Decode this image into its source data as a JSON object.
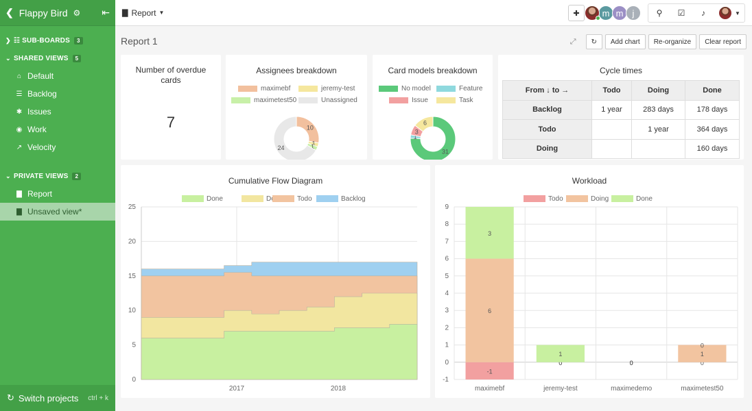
{
  "sidebar": {
    "project": "Flappy Bird",
    "sections": {
      "sub_boards": {
        "label": "SUB-BOARDS",
        "count": "3"
      },
      "shared_views": {
        "label": "SHARED VIEWS",
        "count": "5"
      },
      "private_views": {
        "label": "PRIVATE VIEWS",
        "count": "2"
      }
    },
    "shared_items": [
      {
        "label": "Default",
        "icon": "home-icon"
      },
      {
        "label": "Backlog",
        "icon": "list-icon"
      },
      {
        "label": "Issues",
        "icon": "bug-icon"
      },
      {
        "label": "Work",
        "icon": "palette-icon"
      },
      {
        "label": "Velocity",
        "icon": "line-chart-icon"
      }
    ],
    "private_items": [
      {
        "label": "Report",
        "icon": "bar-chart-icon"
      },
      {
        "label": "Unsaved view*",
        "icon": "bar-chart-icon"
      }
    ],
    "footer": {
      "label": "Switch projects",
      "shortcut": "ctrl + k"
    }
  },
  "topbar": {
    "view_label": "Report",
    "avatars": [
      "m",
      "m",
      "j"
    ],
    "avatar_colors": [
      "#5b9aa0",
      "#9b8fc5",
      "#a9b0b8"
    ]
  },
  "report": {
    "title": "Report 1",
    "buttons": {
      "add_chart": "Add chart",
      "reorganize": "Re-organize",
      "clear": "Clear report"
    }
  },
  "overdue": {
    "title": "Number of overdue cards",
    "value": "7"
  },
  "assignees": {
    "title": "Assignees breakdown",
    "legend": [
      {
        "name": "maximebf",
        "color": "#f2c09e"
      },
      {
        "name": "jeremy-test",
        "color": "#f5e79e"
      },
      {
        "name": "maximetest50",
        "color": "#c8f0a8"
      },
      {
        "name": "Unassigned",
        "color": "#e8e8e8"
      }
    ],
    "values": [
      10,
      1,
      1,
      24
    ],
    "value_labels": [
      "10",
      "1",
      "1",
      "24"
    ]
  },
  "card_models": {
    "title": "Card models breakdown",
    "legend": [
      {
        "name": "No model",
        "color": "#5bc97a"
      },
      {
        "name": "Feature",
        "color": "#8fd9de"
      },
      {
        "name": "Issue",
        "color": "#f2a0a0"
      },
      {
        "name": "Task",
        "color": "#f5e79e"
      }
    ],
    "values": [
      31,
      1,
      3,
      6
    ],
    "value_labels": [
      "31",
      "1",
      "3",
      "6"
    ]
  },
  "cycle": {
    "title": "Cycle times",
    "headers": [
      "From ↓ to →",
      "Todo",
      "Doing",
      "Done"
    ],
    "rows": [
      {
        "label": "Backlog",
        "cells": [
          "1 year",
          "283 days",
          "178 days"
        ]
      },
      {
        "label": "Todo",
        "cells": [
          "",
          "1 year",
          "364 days"
        ]
      },
      {
        "label": "Doing",
        "cells": [
          "",
          "",
          "160 days"
        ]
      }
    ]
  },
  "chart_data": [
    {
      "type": "area",
      "title": "Cumulative Flow Diagram",
      "legend": [
        {
          "name": "Done",
          "color": "#c8f0a0"
        },
        {
          "name": "Doing",
          "color": "#f2e6a0"
        },
        {
          "name": "Todo",
          "color": "#f2c4a0"
        },
        {
          "name": "Backlog",
          "color": "#9fd0f0"
        }
      ],
      "ylim": [
        0,
        25
      ],
      "yticks": [
        "0",
        "5",
        "10",
        "15",
        "20",
        "25"
      ],
      "xticks": [
        "2017",
        "2018"
      ],
      "x": [
        "2016-04",
        "2016-07",
        "2016-10",
        "2017-01",
        "2017-04",
        "2017-07",
        "2017-10",
        "2018-01",
        "2018-04",
        "2018-07",
        "2018-10"
      ],
      "series": [
        {
          "name": "Done",
          "values": [
            6,
            6,
            6,
            7,
            7,
            7,
            7,
            7.5,
            7.5,
            8,
            8
          ]
        },
        {
          "name": "Doing",
          "values": [
            9,
            9,
            9,
            10,
            9.5,
            10,
            10.5,
            12,
            12.5,
            12.5,
            12.5
          ]
        },
        {
          "name": "Todo",
          "values": [
            15,
            15,
            15,
            15.5,
            15,
            15,
            15,
            15,
            15,
            15,
            15
          ]
        },
        {
          "name": "Backlog",
          "values": [
            16,
            16,
            16,
            16.5,
            17,
            17,
            17,
            17,
            17,
            17,
            17
          ]
        }
      ]
    },
    {
      "type": "bar",
      "title": "Workload",
      "legend": [
        {
          "name": "Todo",
          "color": "#f2a0a0"
        },
        {
          "name": "Doing",
          "color": "#f2c4a0"
        },
        {
          "name": "Done",
          "color": "#c8f0a0"
        }
      ],
      "ylim": [
        -1,
        9
      ],
      "categories": [
        "maximebf",
        "jeremy-test",
        "maximedemo",
        "maximetest50"
      ],
      "series": [
        {
          "name": "Todo",
          "values": [
            -1,
            0,
            0,
            0
          ]
        },
        {
          "name": "Doing",
          "values": [
            6,
            0,
            0,
            1
          ]
        },
        {
          "name": "Done",
          "values": [
            3,
            1,
            0,
            0
          ]
        }
      ]
    }
  ]
}
